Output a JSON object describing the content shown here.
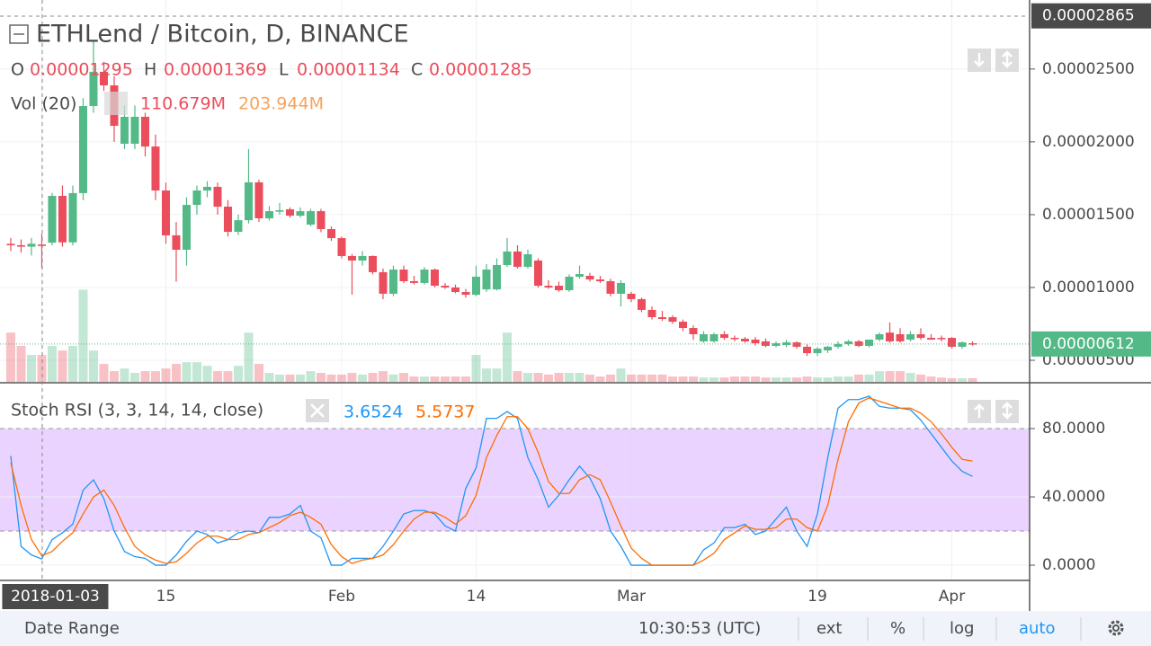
{
  "header": {
    "title": "ETHLend / Bitcoin, D, BINANCE",
    "ohlc": [
      {
        "name": "O",
        "value": 1.295e-05,
        "label": "0.00001295"
      },
      {
        "name": "H",
        "value": 1.369e-05,
        "label": "0.00001369"
      },
      {
        "name": "L",
        "value": 1.134e-05,
        "label": "0.00001134"
      },
      {
        "name": "C",
        "value": 1.285e-05,
        "label": "0.00001285"
      }
    ],
    "volume_title": "Vol (20)",
    "volume_values": [
      {
        "value": 110.679,
        "label": "110.679M"
      },
      {
        "value": 203.944,
        "label": "203.944M"
      }
    ]
  },
  "chart_data": [
    {
      "type": "candlestick",
      "colors": {
        "up": "#53b987",
        "down": "#eb4d5c"
      },
      "xlim": [
        -1.04,
        98.52
      ],
      "ylim": [
        3.52e-06,
        2.974e-05
      ],
      "xticks": [
        {
          "value": 3,
          "label": "2018-01-03"
        },
        {
          "value": 15,
          "label": "15"
        },
        {
          "value": 32,
          "label": "Feb"
        },
        {
          "value": 45,
          "label": "14"
        },
        {
          "value": 60,
          "label": "Mar"
        },
        {
          "value": 78,
          "label": "19"
        },
        {
          "value": 91,
          "label": "Apr"
        }
      ],
      "yticks": [
        {
          "value": 5e-06,
          "label": "0.00000500"
        },
        {
          "value": 1e-05,
          "label": "0.00001000"
        },
        {
          "value": 1.5e-05,
          "label": "0.00001500"
        },
        {
          "value": 2e-05,
          "label": "0.00002000"
        },
        {
          "value": 2.5e-05,
          "label": "0.00002500"
        }
      ],
      "price_tags": [
        {
          "value": 2.865e-05,
          "label": "0.00002865",
          "color": "#4a4a4a"
        },
        {
          "value": 6.12e-06,
          "label": "0.00000612",
          "color": "#53b987"
        }
      ],
      "candles": [
        [
          1.3e-05,
          1.34e-05,
          1.25e-05,
          1.29e-05
        ],
        [
          1.29e-05,
          1.33e-05,
          1.24e-05,
          1.28e-05
        ],
        [
          1.28e-05,
          1.34e-05,
          1.22e-05,
          1.3e-05
        ],
        [
          1.295e-05,
          1.369e-05,
          1.134e-05,
          1.285e-05
        ],
        [
          1.308e-05,
          1.65e-05,
          1.29e-05,
          1.629e-05
        ],
        [
          1.629e-05,
          1.7e-05,
          1.28e-05,
          1.31e-05
        ],
        [
          1.31e-05,
          1.7e-05,
          1.29e-05,
          1.648e-05
        ],
        [
          1.648e-05,
          2.3e-05,
          1.6e-05,
          2.246e-05
        ],
        [
          2.246e-05,
          2.7e-05,
          2.2e-05,
          2.481e-05
        ],
        [
          2.481e-05,
          2.55e-05,
          2.35e-05,
          2.388e-05
        ],
        [
          2.388e-05,
          2.45e-05,
          2e-05,
          2.11e-05
        ],
        [
          1.987e-05,
          2.25e-05,
          1.95e-05,
          2.172e-05
        ],
        [
          1.987e-05,
          2.25e-05,
          1.95e-05,
          2.172e-05
        ],
        [
          2.172e-05,
          2.2e-05,
          1.9e-05,
          1.968e-05
        ],
        [
          1.968e-05,
          2.05e-05,
          1.6e-05,
          1.666e-05
        ],
        [
          1.666e-05,
          1.72e-05,
          1.3e-05,
          1.358e-05
        ],
        [
          1.358e-05,
          1.45e-05,
          1.04e-05,
          1.259e-05
        ],
        [
          1.259e-05,
          1.62e-05,
          1.15e-05,
          1.567e-05
        ],
        [
          1.567e-05,
          1.7e-05,
          1.5e-05,
          1.666e-05
        ],
        [
          1.666e-05,
          1.73e-05,
          1.62e-05,
          1.691e-05
        ],
        [
          1.691e-05,
          1.72e-05,
          1.5e-05,
          1.555e-05
        ],
        [
          1.555e-05,
          1.6e-05,
          1.35e-05,
          1.382e-05
        ],
        [
          1.382e-05,
          1.5e-05,
          1.36e-05,
          1.462e-05
        ],
        [
          1.462e-05,
          1.95e-05,
          1.44e-05,
          1.722e-05
        ],
        [
          1.722e-05,
          1.74e-05,
          1.45e-05,
          1.475e-05
        ],
        [
          1.475e-05,
          1.56e-05,
          1.46e-05,
          1.524e-05
        ],
        [
          1.52e-05,
          1.58e-05,
          1.5e-05,
          1.53e-05
        ],
        [
          1.537e-05,
          1.55e-05,
          1.48e-05,
          1.493e-05
        ],
        [
          1.493e-05,
          1.55e-05,
          1.48e-05,
          1.524e-05
        ],
        [
          1.432e-05,
          1.54e-05,
          1.42e-05,
          1.524e-05
        ],
        [
          1.524e-05,
          1.54e-05,
          1.38e-05,
          1.401e-05
        ],
        [
          1.401e-05,
          1.42e-05,
          1.32e-05,
          1.339e-05
        ],
        [
          1.339e-05,
          1.35e-05,
          1.2e-05,
          1.216e-05
        ],
        [
          1.216e-05,
          1.23e-05,
          9.5e-06,
          1.185e-05
        ],
        [
          1.185e-05,
          1.25e-05,
          1.15e-05,
          1.216e-05
        ],
        [
          1.216e-05,
          1.22e-05,
          1.09e-05,
          1.105e-05
        ],
        [
          1.105e-05,
          1.13e-05,
          9.2e-06,
          9.57e-06
        ],
        [
          9.57e-06,
          1.15e-05,
          9.4e-06,
          1.123e-05
        ],
        [
          1.123e-05,
          1.15e-05,
          1.03e-05,
          1.043e-05
        ],
        [
          1.043e-05,
          1.08e-05,
          1.02e-05,
          1.031e-05
        ],
        [
          1.031e-05,
          1.14e-05,
          1.02e-05,
          1.123e-05
        ],
        [
          1.123e-05,
          1.13e-05,
          1e-05,
          1.012e-05
        ],
        [
          1.012e-05,
          1.03e-05,
          9.9e-06,
          1e-05
        ],
        [
          1e-05,
          1.02e-05,
          9.6e-06,
          9.69e-06
        ],
        [
          9.69e-06,
          9.9e-06,
          9.3e-06,
          9.5e-06
        ],
        [
          9.5e-06,
          1.15e-05,
          9.4e-06,
          1.074e-05
        ],
        [
          9.87e-06,
          1.16e-05,
          9.7e-06,
          1.123e-05
        ],
        [
          9.87e-06,
          1.2e-05,
          9.8e-06,
          1.154e-05
        ],
        [
          1.154e-05,
          1.34e-05,
          1.14e-05,
          1.247e-05
        ],
        [
          1.247e-05,
          1.29e-05,
          1.13e-05,
          1.142e-05
        ],
        [
          1.142e-05,
          1.26e-05,
          1.13e-05,
          1.228e-05
        ],
        [
          1.185e-05,
          1.2e-05,
          1e-05,
          1.012e-05
        ],
        [
          1.012e-05,
          1.05e-05,
          9.9e-06,
          1e-05
        ],
        [
          1.012e-05,
          1.04e-05,
          9.7e-06,
          9.81e-06
        ],
        [
          9.81e-06,
          1.09e-05,
          9.7e-06,
          1.074e-05
        ],
        [
          1.074e-05,
          1.15e-05,
          1.06e-05,
          1.092e-05
        ],
        [
          1.08e-05,
          1.1e-05,
          1.04e-05,
          1.055e-05
        ],
        [
          1.055e-05,
          1.08e-05,
          1.03e-05,
          1.043e-05
        ],
        [
          1.043e-05,
          1.06e-05,
          9.4e-06,
          9.57e-06
        ],
        [
          9.57e-06,
          1.05e-05,
          8.7e-06,
          1.031e-05
        ],
        [
          9.57e-06,
          9.7e-06,
          9e-06,
          9.2e-06
        ],
        [
          9.2e-06,
          9.3e-06,
          8.3e-06,
          8.46e-06
        ],
        [
          8.46e-06,
          8.7e-06,
          7.8e-06,
          7.96e-06
        ],
        [
          7.96e-06,
          8.4e-06,
          7.7e-06,
          7.84e-06
        ],
        [
          7.96e-06,
          8.1e-06,
          7.5e-06,
          7.65e-06
        ],
        [
          7.65e-06,
          7.8e-06,
          7e-06,
          7.22e-06
        ],
        [
          7.22e-06,
          7.4e-06,
          6.4e-06,
          6.79e-06
        ],
        [
          6.3e-06,
          7e-06,
          6.2e-06,
          6.79e-06
        ],
        [
          6.3e-06,
          6.9e-06,
          6.2e-06,
          6.79e-06
        ],
        [
          6.79e-06,
          7e-06,
          6.4e-06,
          6.54e-06
        ],
        [
          6.54e-06,
          6.7e-06,
          6.3e-06,
          6.48e-06
        ],
        [
          6.48e-06,
          6.6e-06,
          6.2e-06,
          6.3e-06
        ],
        [
          6.42e-06,
          6.6e-06,
          6e-06,
          6.17e-06
        ],
        [
          6.3e-06,
          6.5e-06,
          5.9e-06,
          5.99e-06
        ],
        [
          5.99e-06,
          6.3e-06,
          5.9e-06,
          6.17e-06
        ],
        [
          6.05e-06,
          6.4e-06,
          5.9e-06,
          6.23e-06
        ],
        [
          6.23e-06,
          6.3e-06,
          5.8e-06,
          5.93e-06
        ],
        [
          5.93e-06,
          6.1e-06,
          5.3e-06,
          5.49e-06
        ],
        [
          5.49e-06,
          5.9e-06,
          5.3e-06,
          5.8e-06
        ],
        [
          5.68e-06,
          6e-06,
          5.5e-06,
          5.93e-06
        ],
        [
          5.93e-06,
          6.3e-06,
          5.8e-06,
          6.11e-06
        ],
        [
          6.11e-06,
          6.4e-06,
          6e-06,
          6.3e-06
        ],
        [
          6.3e-06,
          6.4e-06,
          5.9e-06,
          5.99e-06
        ],
        [
          5.99e-06,
          6.4e-06,
          5.9e-06,
          6.42e-06
        ],
        [
          6.42e-06,
          6.9e-06,
          6.3e-06,
          6.79e-06
        ],
        [
          6.9e-06,
          7.6e-06,
          6.2e-06,
          6.3e-06
        ],
        [
          6.79e-06,
          7.2e-06,
          6.2e-06,
          6.3e-06
        ],
        [
          6.42e-06,
          7e-06,
          6.3e-06,
          6.79e-06
        ],
        [
          6.79e-06,
          7.2e-06,
          6.4e-06,
          6.54e-06
        ],
        [
          6.54e-06,
          6.8e-06,
          6.4e-06,
          6.42e-06
        ],
        [
          6.54e-06,
          6.7e-06,
          6.3e-06,
          6.48e-06
        ],
        [
          6.54e-06,
          6.6e-06,
          5.8e-06,
          5.93e-06
        ],
        [
          5.93e-06,
          6.3e-06,
          5.8e-06,
          6.23e-06
        ],
        [
          6.17e-06,
          6.3e-06,
          6e-06,
          6.12e-06
        ]
      ]
    },
    {
      "type": "bar",
      "ylim": [
        0,
        400
      ],
      "values": [
        203,
        148,
        111,
        110.679,
        148,
        129,
        148,
        380,
        129,
        74,
        44,
        55,
        37,
        44,
        44,
        55,
        74,
        81,
        81,
        66,
        44,
        44,
        66,
        203,
        74,
        37,
        30,
        30,
        30,
        44,
        37,
        30,
        30,
        37,
        30,
        37,
        44,
        30,
        37,
        22,
        22,
        22,
        22,
        22,
        22,
        111,
        55,
        55,
        203,
        44,
        37,
        37,
        30,
        37,
        37,
        37,
        30,
        22,
        30,
        55,
        30,
        30,
        30,
        30,
        22,
        22,
        22,
        18,
        18,
        18,
        22,
        22,
        22,
        18,
        18,
        18,
        18,
        22,
        18,
        18,
        22,
        22,
        30,
        30,
        44,
        44,
        44,
        37,
        30,
        22,
        18,
        15,
        15,
        15
      ]
    },
    {
      "type": "line",
      "title": "Stoch RSI (3, 3, 14, 14, close)",
      "ylim": [
        -8.4,
        105.8
      ],
      "yticks": [
        {
          "value": 0,
          "label": "0.0000"
        },
        {
          "value": 40,
          "label": "40.0000"
        },
        {
          "value": 80,
          "label": "80.0000"
        }
      ],
      "band": [
        20,
        80
      ],
      "band_color": "#e6ccff",
      "series": [
        {
          "color": "#2196f3",
          "values": [
            64,
            11,
            6,
            3.6524,
            15,
            19,
            24,
            44,
            50,
            39,
            20,
            8,
            5,
            4,
            0,
            0,
            6,
            14,
            20,
            18,
            13,
            15,
            19,
            20,
            19,
            28,
            28,
            30,
            35,
            20,
            16,
            0,
            0,
            4,
            4,
            4,
            11,
            20,
            30,
            32,
            32,
            30,
            23,
            20,
            45,
            57,
            86,
            86,
            90,
            86,
            63,
            50,
            34,
            41,
            50,
            58,
            51,
            39,
            20,
            11,
            0,
            0,
            0,
            0,
            0,
            0,
            0,
            9,
            13,
            22,
            22,
            24,
            18,
            20,
            27,
            34,
            20,
            11,
            30,
            63,
            92,
            97,
            97,
            99,
            93,
            92,
            92,
            91,
            85,
            77,
            69,
            61,
            55,
            52
          ]
        },
        {
          "color": "#ff6d00",
          "values": [
            60,
            35,
            15,
            5.5737,
            8,
            14,
            19,
            30,
            40,
            44,
            35,
            22,
            11,
            6,
            3,
            1,
            2,
            7,
            13,
            17,
            17,
            15,
            15,
            18,
            19,
            22,
            25,
            29,
            31,
            28,
            24,
            12,
            5,
            1,
            3,
            4,
            6,
            12,
            20,
            27,
            31,
            31,
            28,
            24,
            29,
            41,
            63,
            76,
            87,
            87,
            80,
            66,
            49,
            42,
            42,
            50,
            53,
            50,
            37,
            23,
            10,
            4,
            0,
            0,
            0,
            0,
            0,
            3,
            7,
            15,
            19,
            23,
            21,
            21,
            22,
            27,
            27,
            22,
            20,
            35,
            62,
            84,
            95,
            98,
            96,
            94,
            92,
            92,
            89,
            84,
            77,
            69,
            62,
            61
          ]
        }
      ]
    }
  ],
  "footer": {
    "range": "Date Range",
    "time": "10:30:53 (UTC)",
    "ext": "ext",
    "percent": "%",
    "log": "log",
    "auto": "auto"
  }
}
